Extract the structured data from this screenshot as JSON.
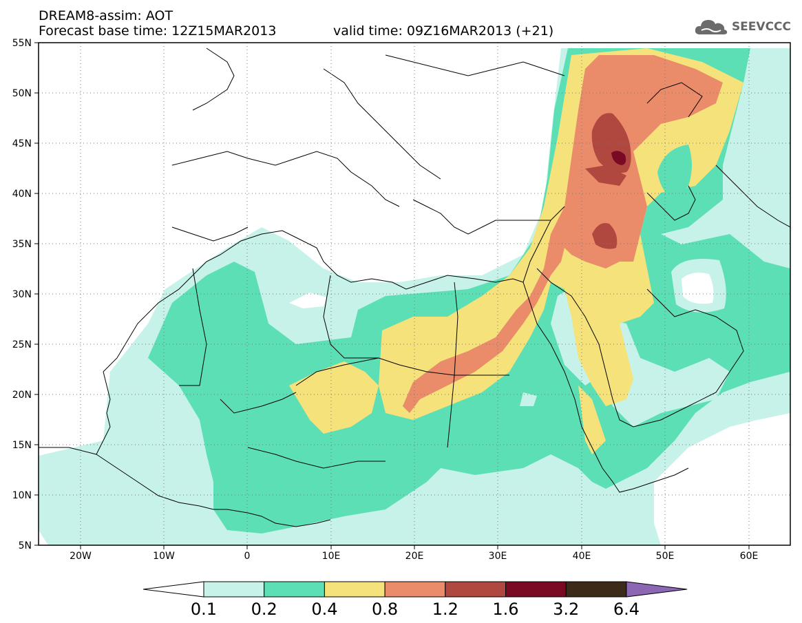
{
  "header": {
    "line1": "DREAM8-assim: AOT",
    "line2": "Forecast base time: 12Z15MAR2013",
    "valid": "valid time: 09Z16MAR2013 (+21)",
    "logo": "SEEVCCC"
  },
  "map": {
    "lon_range": [
      -25,
      65
    ],
    "lat_range": [
      5,
      55
    ],
    "lat_labels": [
      "55N",
      "50N",
      "45N",
      "40N",
      "35N",
      "30N",
      "25N",
      "20N",
      "15N",
      "10N",
      "5N"
    ],
    "lon_labels": [
      "20W",
      "10W",
      "0",
      "10E",
      "20E",
      "30E",
      "40E",
      "50E",
      "60E"
    ],
    "grid": "dotted"
  },
  "legend": {
    "labels": [
      "0.1",
      "0.2",
      "0.4",
      "0.8",
      "1.2",
      "1.6",
      "3.2",
      "6.4"
    ],
    "colors": [
      "#ffffff",
      "#c7f2ea",
      "#5ddfb6",
      "#f5e27b",
      "#ea8c6a",
      "#b0483f",
      "#7a0a24",
      "#3d2a18",
      "#8b67b4"
    ]
  },
  "colors": {
    "aot_0_1": "#c7f2ea",
    "aot_0_2": "#5ddfb6",
    "aot_0_4": "#f5e27b",
    "aot_0_8": "#ea8c6a",
    "aot_1_2": "#b0483f",
    "aot_1_6": "#7a0a24"
  }
}
